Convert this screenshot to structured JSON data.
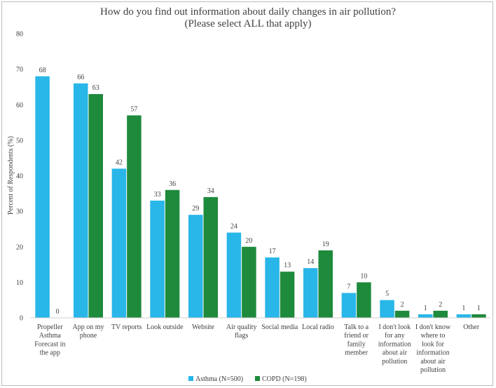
{
  "chart_data": {
    "type": "bar",
    "title": "How do you find out information about daily changes in air pollution?",
    "subtitle": "(Please select ALL that apply)",
    "ylabel": "Percent of Respondents (%)",
    "xlabel": "",
    "ylim": [
      0,
      80
    ],
    "yticks": [
      0,
      10,
      20,
      30,
      40,
      50,
      60,
      70,
      80
    ],
    "grid": false,
    "legend_position": "bottom",
    "categories": [
      [
        "Propeller",
        "Asthma",
        "Forecast in",
        "the app"
      ],
      [
        "App on my",
        "phone"
      ],
      [
        "TV reports"
      ],
      [
        "Look outside"
      ],
      [
        "Website"
      ],
      [
        "Air quality",
        "flags"
      ],
      [
        "Social media"
      ],
      [
        "Local radio"
      ],
      [
        "Talk to a",
        "friend or",
        "family",
        "member"
      ],
      [
        "I don't look",
        "for any",
        "information",
        "about air",
        "pollution"
      ],
      [
        "I don't know",
        "where to",
        "look for",
        "information",
        "about air",
        "pollution"
      ],
      [
        "Other"
      ]
    ],
    "series": [
      {
        "name": "Asthma (N=500)",
        "color": "#29b6e8",
        "values": [
          68,
          66,
          42,
          33,
          29,
          24,
          17,
          14,
          7,
          5,
          1,
          1
        ]
      },
      {
        "name": "COPD (N=198)",
        "color": "#1e8a3c",
        "values": [
          0,
          63,
          57,
          36,
          34,
          20,
          13,
          19,
          10,
          2,
          2,
          1
        ]
      }
    ]
  }
}
